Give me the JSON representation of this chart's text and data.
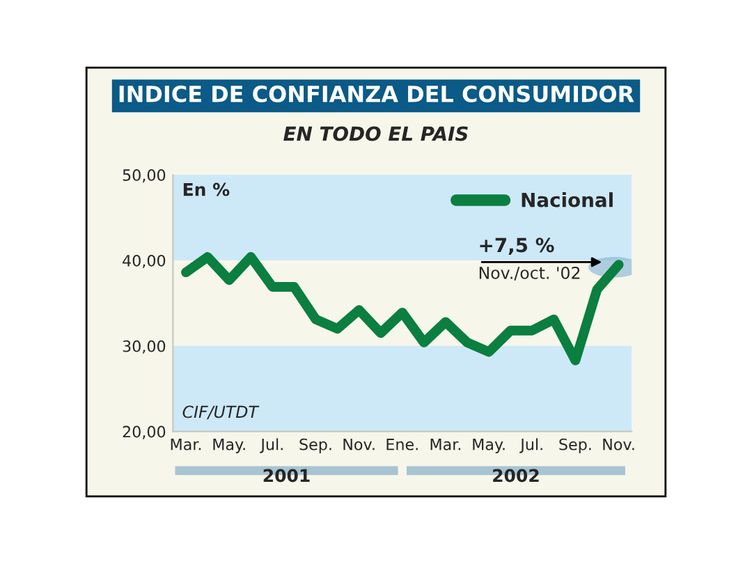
{
  "chart_data": {
    "type": "line",
    "title": "INDICE DE CONFIANZA DEL CONSUMIDOR",
    "subtitle": "EN TODO EL PAIS",
    "ylabel": "En %",
    "categories": [
      "Mar.",
      null,
      "May.",
      null,
      "Jul.",
      null,
      "Sep.",
      null,
      "Nov.",
      null,
      "Ene.",
      null,
      "Mar.",
      null,
      "May.",
      null,
      "Jul.",
      null,
      "Sep.",
      null,
      "Nov."
    ],
    "series": [
      {
        "name": "Nacional",
        "color": "#0a7f3f",
        "values": [
          38.6,
          40.4,
          37.7,
          40.4,
          36.9,
          36.9,
          33.1,
          32.0,
          34.2,
          31.5,
          33.9,
          30.4,
          32.8,
          30.4,
          29.3,
          31.8,
          31.8,
          33.1,
          28.3,
          36.6,
          39.5
        ]
      }
    ],
    "ylim": [
      20,
      50
    ],
    "yticks": [
      {
        "value": 20,
        "label": "20,00"
      },
      {
        "value": 30,
        "label": "30,00"
      },
      {
        "value": 40,
        "label": "40,00"
      },
      {
        "value": 50,
        "label": "50,00"
      }
    ],
    "bands": [
      {
        "axis": "y",
        "from": 40,
        "to": 50,
        "color": "#cde9f8"
      },
      {
        "axis": "y",
        "from": 20,
        "to": 30,
        "color": "#cde9f8"
      }
    ],
    "annotations": [
      {
        "text": "+7,5 %",
        "y": 39.5
      },
      "Nov./oct. '02",
      "CIF/UTDT",
      "2001",
      "2002"
    ],
    "legend": "top right",
    "grid": false,
    "marker": "none",
    "line_style": "solid"
  }
}
